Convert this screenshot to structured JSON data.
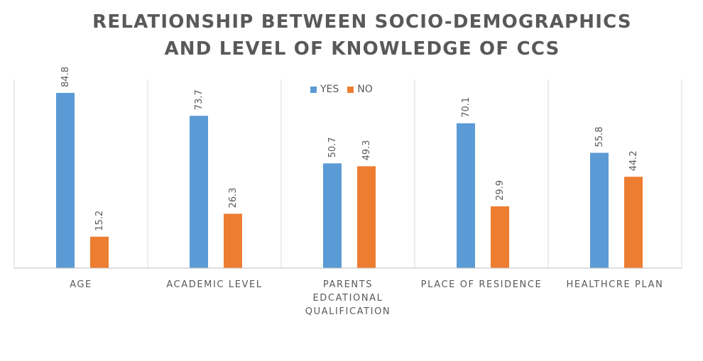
{
  "chart_data": {
    "type": "bar",
    "title": "RELATIONSHIP BETWEEN SOCIO-DEMOGRAPHICS AND LEVEL OF KNOWLEDGE OF CCS",
    "title_lines": [
      "RELATIONSHIP BETWEEN SOCIO-DEMOGRAPHICS",
      "AND LEVEL OF KNOWLEDGE OF CCS"
    ],
    "categories": [
      "AGE",
      "ACADEMIC LEVEL",
      "PARENTS EDCATIONAL QUALIFICATION",
      "PLACE OF RESIDENCE",
      "HEALTHCRE PLAN"
    ],
    "category_lines": [
      [
        "AGE"
      ],
      [
        "ACADEMIC LEVEL"
      ],
      [
        "PARENTS",
        "EDCATIONAL",
        "QUALIFICATION"
      ],
      [
        "PLACE OF RESIDENCE"
      ],
      [
        "HEALTHCRE PLAN"
      ]
    ],
    "series": [
      {
        "name": "YES",
        "color": "#5B9BD5",
        "values": [
          84.8,
          73.7,
          50.7,
          70.1,
          55.8
        ]
      },
      {
        "name": "NO",
        "color": "#ED7D31",
        "values": [
          15.2,
          26.3,
          49.3,
          29.9,
          44.2
        ]
      }
    ],
    "ylim": [
      0,
      90
    ],
    "xlabel": "",
    "ylabel": "",
    "grid": false,
    "category_separators": true,
    "legend_position": "top-center",
    "data_labels": true,
    "data_label_orientation": "vertical"
  }
}
